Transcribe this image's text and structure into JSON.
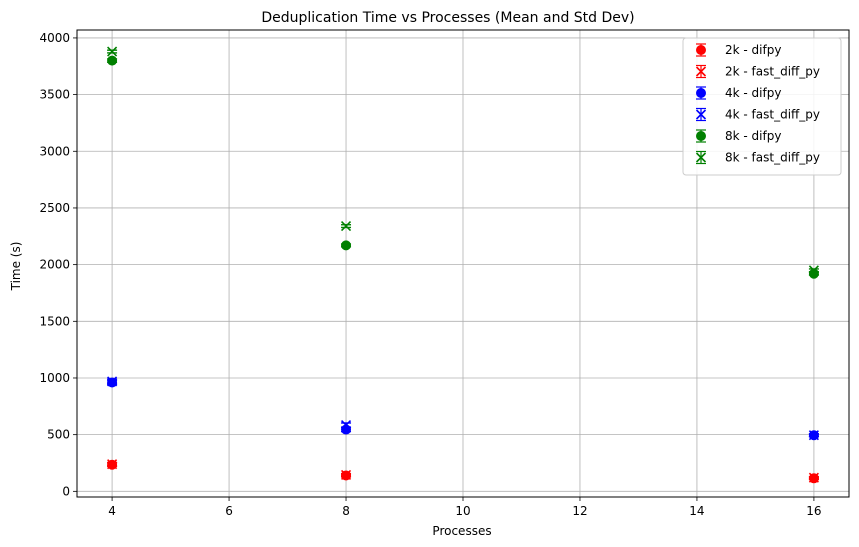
{
  "chart_data": {
    "type": "scatter",
    "title": "Deduplication Time vs Processes (Mean and Std Dev)",
    "xlabel": "Processes",
    "ylabel": "Time (s)",
    "xlim": [
      3.4,
      16.6
    ],
    "ylim": [
      -50,
      4070
    ],
    "xticks": [
      4,
      6,
      8,
      10,
      12,
      14,
      16
    ],
    "yticks": [
      0,
      500,
      1000,
      1500,
      2000,
      2500,
      3000,
      3500,
      4000
    ],
    "grid": true,
    "legend_position": "top-right",
    "x": [
      4,
      8,
      16
    ],
    "series": [
      {
        "name": "2k - difpy",
        "color": "#ff0000",
        "marker": "circle",
        "values": [
          235,
          140,
          115
        ],
        "std": [
          15,
          12,
          10
        ]
      },
      {
        "name": "2k - fast_diff_py",
        "color": "#ff0000",
        "marker": "x",
        "values": [
          240,
          145,
          120
        ],
        "std": [
          15,
          12,
          10
        ]
      },
      {
        "name": "4k - difpy",
        "color": "#0000ff",
        "marker": "circle",
        "values": [
          960,
          545,
          495
        ],
        "std": [
          20,
          18,
          12
        ]
      },
      {
        "name": "4k - fast_diff_py",
        "color": "#0000ff",
        "marker": "x",
        "values": [
          970,
          585,
          495
        ],
        "std": [
          20,
          18,
          12
        ]
      },
      {
        "name": "8k - difpy",
        "color": "#008000",
        "marker": "circle",
        "values": [
          3800,
          2170,
          1920
        ],
        "std": [
          15,
          12,
          12
        ]
      },
      {
        "name": "8k - fast_diff_py",
        "color": "#008000",
        "marker": "x",
        "values": [
          3880,
          2340,
          1950
        ],
        "std": [
          12,
          12,
          12
        ]
      }
    ]
  }
}
